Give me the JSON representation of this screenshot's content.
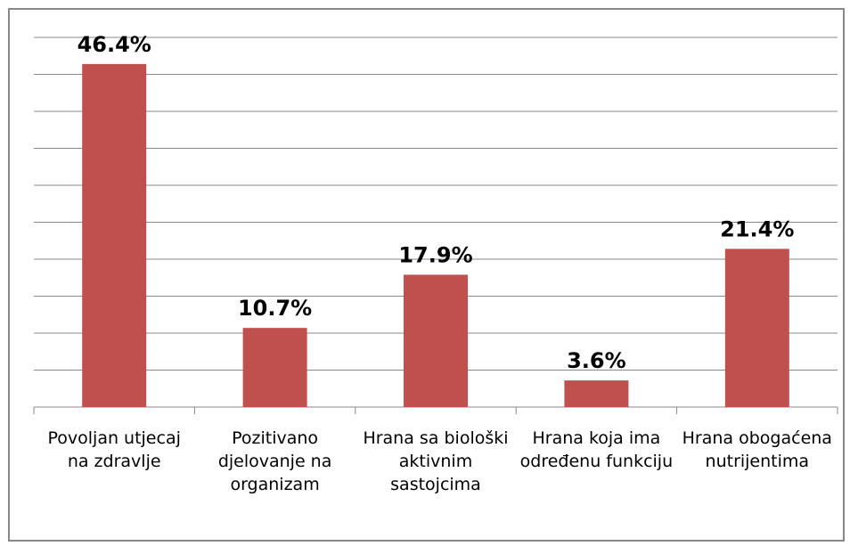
{
  "chart_data": {
    "type": "bar",
    "categories": [
      "Povoljan utjecaj na zdravlje",
      "Pozitivano djelovanje na organizam",
      "Hrana sa biološki aktivnim sastojcima",
      "Hrana koja ima određenu funkciju",
      "Hrana obogaćena nutrijentima"
    ],
    "values": [
      46.4,
      10.7,
      17.9,
      3.6,
      21.4
    ],
    "value_labels": [
      "46.4%",
      "10.7%",
      "17.9%",
      "3.6%",
      "21.4%"
    ],
    "color": "#c0504d",
    "ylim": [
      0,
      50
    ],
    "yticks": [
      0,
      5,
      10,
      15,
      20,
      25,
      30,
      35,
      40,
      45,
      50
    ],
    "grid": true
  }
}
